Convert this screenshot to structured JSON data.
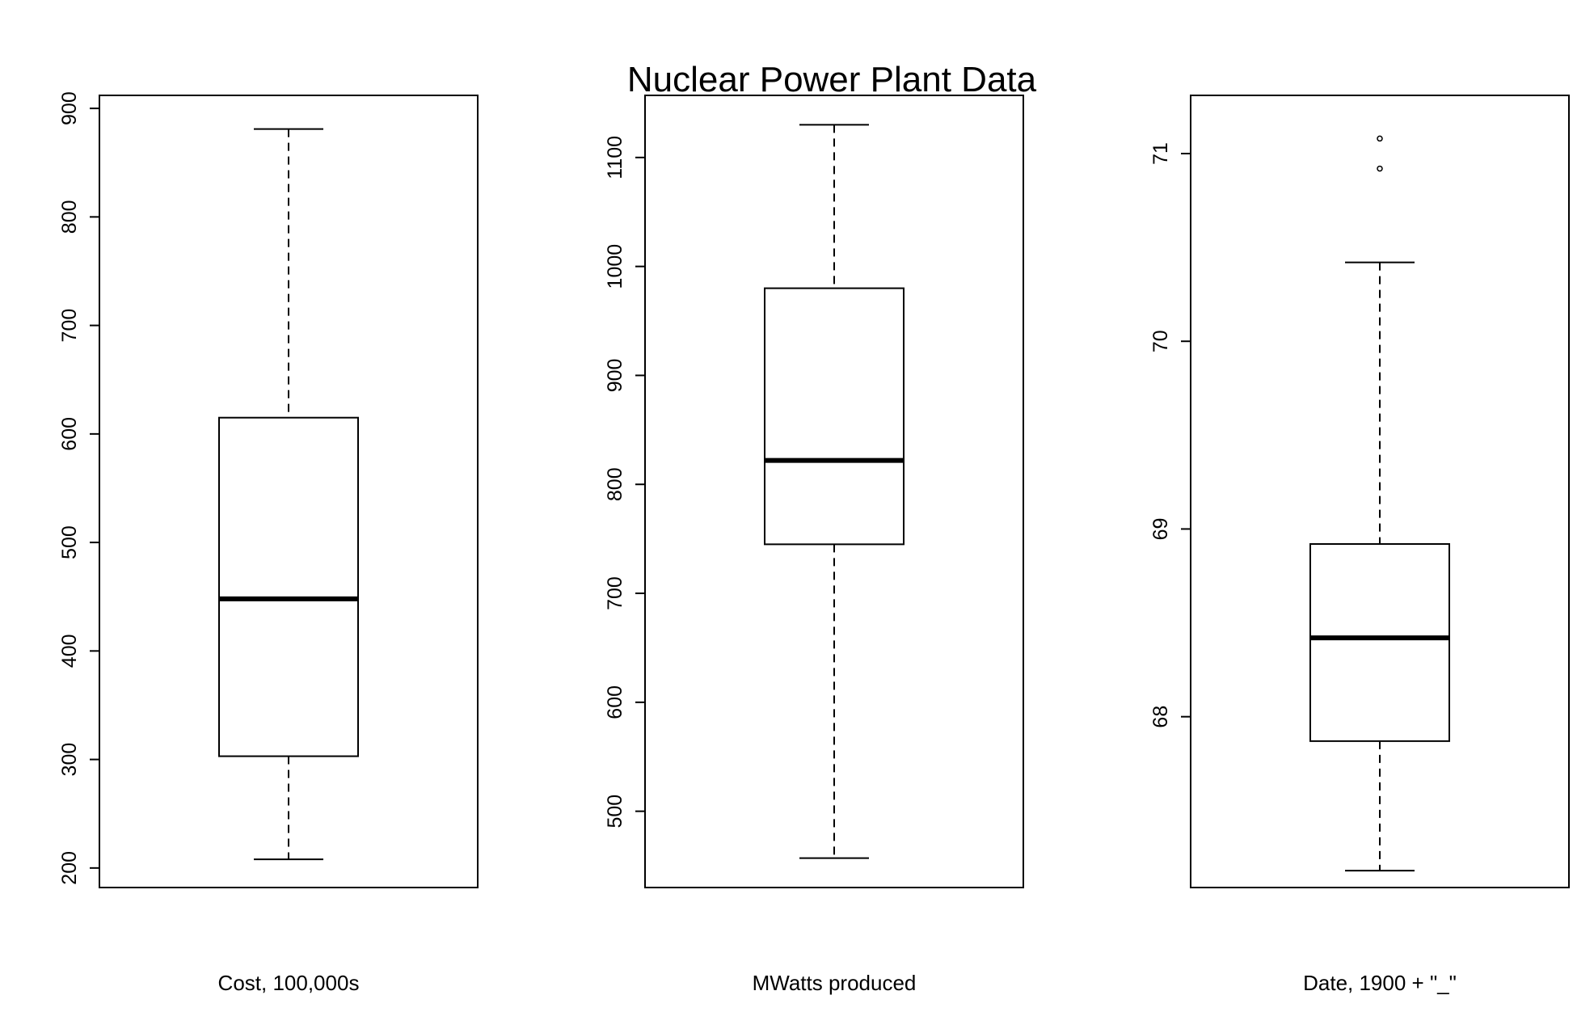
{
  "chart_data": {
    "type": "boxplot",
    "title": "Nuclear Power Plant Data",
    "panels": [
      {
        "xlabel": "Cost, 100,000s",
        "ylim": [
          182,
          912
        ],
        "yticks": [
          200,
          300,
          400,
          500,
          600,
          700,
          800,
          900
        ],
        "ytick_labels": [
          "200",
          "300",
          "400",
          "500",
          "600",
          "700",
          "800",
          "900"
        ],
        "stats": {
          "min": 208,
          "q1": 303,
          "median": 448,
          "q3": 615,
          "max": 881
        },
        "outliers": []
      },
      {
        "xlabel": "MWatts produced",
        "ylim": [
          430,
          1157
        ],
        "yticks": [
          500,
          600,
          700,
          800,
          900,
          1000,
          1100
        ],
        "ytick_labels": [
          "500",
          "600",
          "700",
          "800",
          "900",
          "1000",
          "1100"
        ],
        "stats": {
          "min": 457,
          "q1": 745,
          "median": 822,
          "q3": 980,
          "max": 1130
        },
        "outliers": []
      },
      {
        "xlabel": "Date, 1900 + \"_\"",
        "ylim": [
          67.09,
          71.31
        ],
        "yticks": [
          68,
          69,
          70,
          71
        ],
        "ytick_labels": [
          "68",
          "69",
          "70",
          "71"
        ],
        "stats": {
          "min": 67.18,
          "q1": 67.87,
          "median": 68.42,
          "q3": 68.92,
          "max": 70.42
        },
        "outliers": [
          70.92,
          71.08
        ]
      }
    ]
  }
}
